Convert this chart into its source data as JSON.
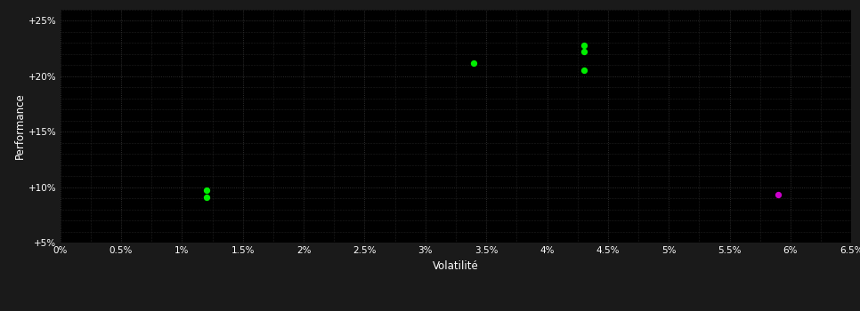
{
  "background_color": "#1a1a1a",
  "plot_bg_color": "#000000",
  "grid_color": "#3a3a3a",
  "text_color": "#ffffff",
  "xlabel": "Volatilité",
  "ylabel": "Performance",
  "xlim": [
    0.0,
    0.065
  ],
  "ylim": [
    0.05,
    0.26
  ],
  "xticks": [
    0.0,
    0.005,
    0.01,
    0.015,
    0.02,
    0.025,
    0.03,
    0.035,
    0.04,
    0.045,
    0.05,
    0.055,
    0.06,
    0.065
  ],
  "yticks": [
    0.05,
    0.1,
    0.15,
    0.2,
    0.25
  ],
  "minor_yticks": [
    0.055,
    0.065,
    0.075,
    0.085,
    0.095,
    0.105,
    0.115,
    0.125,
    0.135,
    0.145,
    0.155,
    0.165,
    0.175,
    0.185,
    0.195,
    0.205,
    0.215,
    0.225,
    0.235,
    0.245,
    0.255
  ],
  "green_points": [
    [
      0.012,
      0.097
    ],
    [
      0.012,
      0.091
    ],
    [
      0.034,
      0.212
    ],
    [
      0.043,
      0.228
    ],
    [
      0.043,
      0.222
    ],
    [
      0.043,
      0.205
    ]
  ],
  "magenta_points": [
    [
      0.059,
      0.093
    ]
  ],
  "green_color": "#00ee00",
  "magenta_color": "#cc00cc",
  "point_size": 18
}
